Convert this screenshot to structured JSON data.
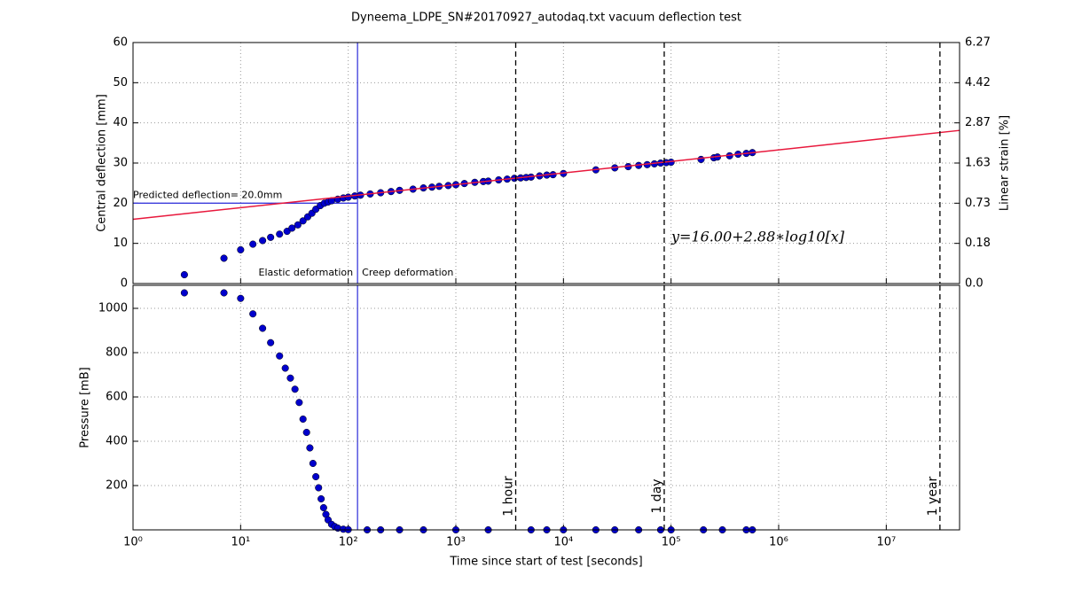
{
  "chart_data": [
    {
      "type": "scatter",
      "title": "Dyneema_LDPE_SN#20170927_autodaq.txt vacuum deflection test",
      "ylabel": "Central deflection [mm]",
      "y2label": "Linear strain [%]",
      "xscale": "log",
      "xlim": [
        1,
        48000000
      ],
      "xticks": [
        {
          "value": 1,
          "label": "10⁰"
        },
        {
          "value": 10,
          "label": "10¹"
        },
        {
          "value": 100,
          "label": "10²"
        },
        {
          "value": 1000,
          "label": "10³"
        },
        {
          "value": 10000,
          "label": "10⁴"
        },
        {
          "value": 100000,
          "label": "10⁵"
        },
        {
          "value": 1000000,
          "label": "10⁶"
        },
        {
          "value": 10000000,
          "label": "10⁷"
        }
      ],
      "ylim": [
        0,
        60
      ],
      "yticks": [
        0,
        10,
        20,
        30,
        40,
        50,
        60
      ],
      "y2ticks": [
        {
          "value": 0,
          "label": "0.0"
        },
        0.18,
        0.73,
        1.63,
        2.87,
        4.42,
        6.27
      ],
      "grid": true,
      "series": [
        {
          "type": "scatter",
          "color": "#0000cc",
          "x": [
            3,
            7,
            10,
            13,
            16,
            19,
            23,
            27,
            30,
            34,
            38,
            42,
            46,
            50,
            55,
            60,
            65,
            70,
            80,
            90,
            100,
            115,
            130,
            160,
            200,
            250,
            300,
            400,
            500,
            600,
            700,
            850,
            1000,
            1200,
            1500,
            1800,
            2000,
            2500,
            3000,
            3500,
            4000,
            4500,
            5000,
            6000,
            7000,
            8000,
            10000,
            20000,
            30000,
            40000,
            50000,
            60000,
            70000,
            80000,
            90000,
            100000,
            190000,
            250000,
            270000,
            350000,
            420000,
            500000,
            570000
          ],
          "values": [
            2.2,
            6.3,
            8.4,
            9.8,
            10.7,
            11.5,
            12.3,
            13.0,
            13.8,
            14.6,
            15.6,
            16.6,
            17.5,
            18.5,
            19.4,
            20.0,
            20.3,
            20.6,
            21.0,
            21.3,
            21.5,
            21.8,
            22.0,
            22.3,
            22.6,
            22.9,
            23.2,
            23.5,
            23.8,
            24.0,
            24.2,
            24.4,
            24.6,
            24.9,
            25.2,
            25.4,
            25.5,
            25.8,
            26.0,
            26.2,
            26.3,
            26.4,
            26.5,
            26.8,
            27.0,
            27.1,
            27.4,
            28.3,
            28.8,
            29.1,
            29.4,
            29.6,
            29.8,
            30.0,
            30.1,
            30.2,
            30.9,
            31.3,
            31.5,
            31.8,
            32.2,
            32.4,
            32.6
          ]
        },
        {
          "type": "line",
          "color": "#e8183c",
          "x": [
            1,
            48000000
          ],
          "values": [
            16,
            38.12
          ]
        }
      ],
      "reference_lines": {
        "color": "#3b3bdc",
        "vertical_x": 122,
        "horizontal_y": 20
      },
      "annotations": {
        "predicted": "Predicted deflection= 20.0mm",
        "elastic": "Elastic deformation",
        "creep": "Creep deformation",
        "equation": "y=16.00+2.88∗log10[x]"
      }
    },
    {
      "type": "scatter",
      "ylabel": "Pressure [mB]",
      "xlabel": "Time since start of test [seconds]",
      "ylim": [
        0,
        1104
      ],
      "yticks": [
        200,
        400,
        600,
        800,
        1000
      ],
      "grid": true,
      "series": [
        {
          "type": "scatter",
          "color": "#0000cc",
          "x": [
            3,
            7,
            10,
            13,
            16,
            19,
            23,
            26,
            29,
            32,
            35,
            38,
            41,
            44,
            47,
            50,
            53,
            56,
            59,
            62,
            65,
            70,
            75,
            80,
            90,
            100,
            150,
            200,
            300,
            500,
            1000,
            2000,
            5000,
            7000,
            10000,
            20000,
            30000,
            50000,
            80000,
            100000,
            200000,
            300000,
            500000,
            570000
          ],
          "values": [
            1070,
            1070,
            1045,
            975,
            910,
            845,
            785,
            730,
            685,
            635,
            575,
            500,
            440,
            370,
            300,
            240,
            190,
            140,
            100,
            70,
            45,
            25,
            15,
            8,
            3,
            1,
            0,
            0,
            0,
            0,
            0,
            0,
            0,
            0,
            0,
            0,
            0,
            0,
            0,
            0,
            0,
            0,
            0,
            0
          ]
        }
      ],
      "markers": [
        {
          "x": 3600,
          "label": "1 hour"
        },
        {
          "x": 86400,
          "label": "1 day"
        },
        {
          "x": 31536000,
          "label": "1 year"
        }
      ]
    }
  ]
}
